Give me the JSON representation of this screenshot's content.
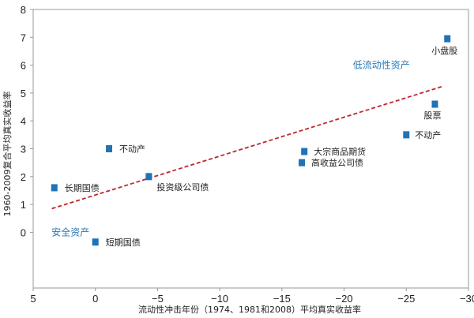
{
  "chart_data": {
    "type": "scatter",
    "xlabel": "流动性冲击年份（1974、1981和2008）平均真实收益率",
    "ylabel": "1960-2009复合平均真实收益率",
    "xlim": [
      5,
      -30
    ],
    "ylim": [
      -2,
      8
    ],
    "x_ticks": [
      5,
      0,
      -5,
      -10,
      -15,
      -20,
      -25,
      -30
    ],
    "x_tick_labels": [
      "5",
      "0",
      "−5",
      "−10",
      "−15",
      "−20",
      "−25",
      "−30"
    ],
    "y_ticks": [
      0,
      1,
      2,
      3,
      4,
      5,
      6,
      7,
      8
    ],
    "y_tick_labels": [
      "0",
      "1",
      "2",
      "3",
      "4",
      "5",
      "6",
      "7",
      "8"
    ],
    "grid": false,
    "marker_color": "#1f73b7",
    "trend_color": "#c0262d",
    "points": [
      {
        "label": "长期国债",
        "x": 3.3,
        "y": 1.6
      },
      {
        "label": "不动产",
        "x": -1.1,
        "y": 3.0
      },
      {
        "label": "短期国债",
        "x": 0.0,
        "y": -0.35
      },
      {
        "label": "投资级公司债",
        "x": -4.3,
        "y": 2.0
      },
      {
        "label": "大宗商品期货",
        "x": -16.8,
        "y": 2.9
      },
      {
        "label": "高收益公司债",
        "x": -16.6,
        "y": 2.5
      },
      {
        "label": "不动产",
        "x": -25.0,
        "y": 3.5
      },
      {
        "label": "股票",
        "x": -27.3,
        "y": 4.6
      },
      {
        "label": "小盘股",
        "x": -28.3,
        "y": 6.95
      }
    ],
    "trendline": {
      "x": [
        3.5,
        -28.0
      ],
      "y": [
        0.85,
        5.25
      ]
    },
    "annotations": [
      {
        "text": "低流动性资产",
        "x": -23.0,
        "y": 6.0
      },
      {
        "text": "安全资产",
        "x": 2.0,
        "y": 0.0
      }
    ]
  }
}
